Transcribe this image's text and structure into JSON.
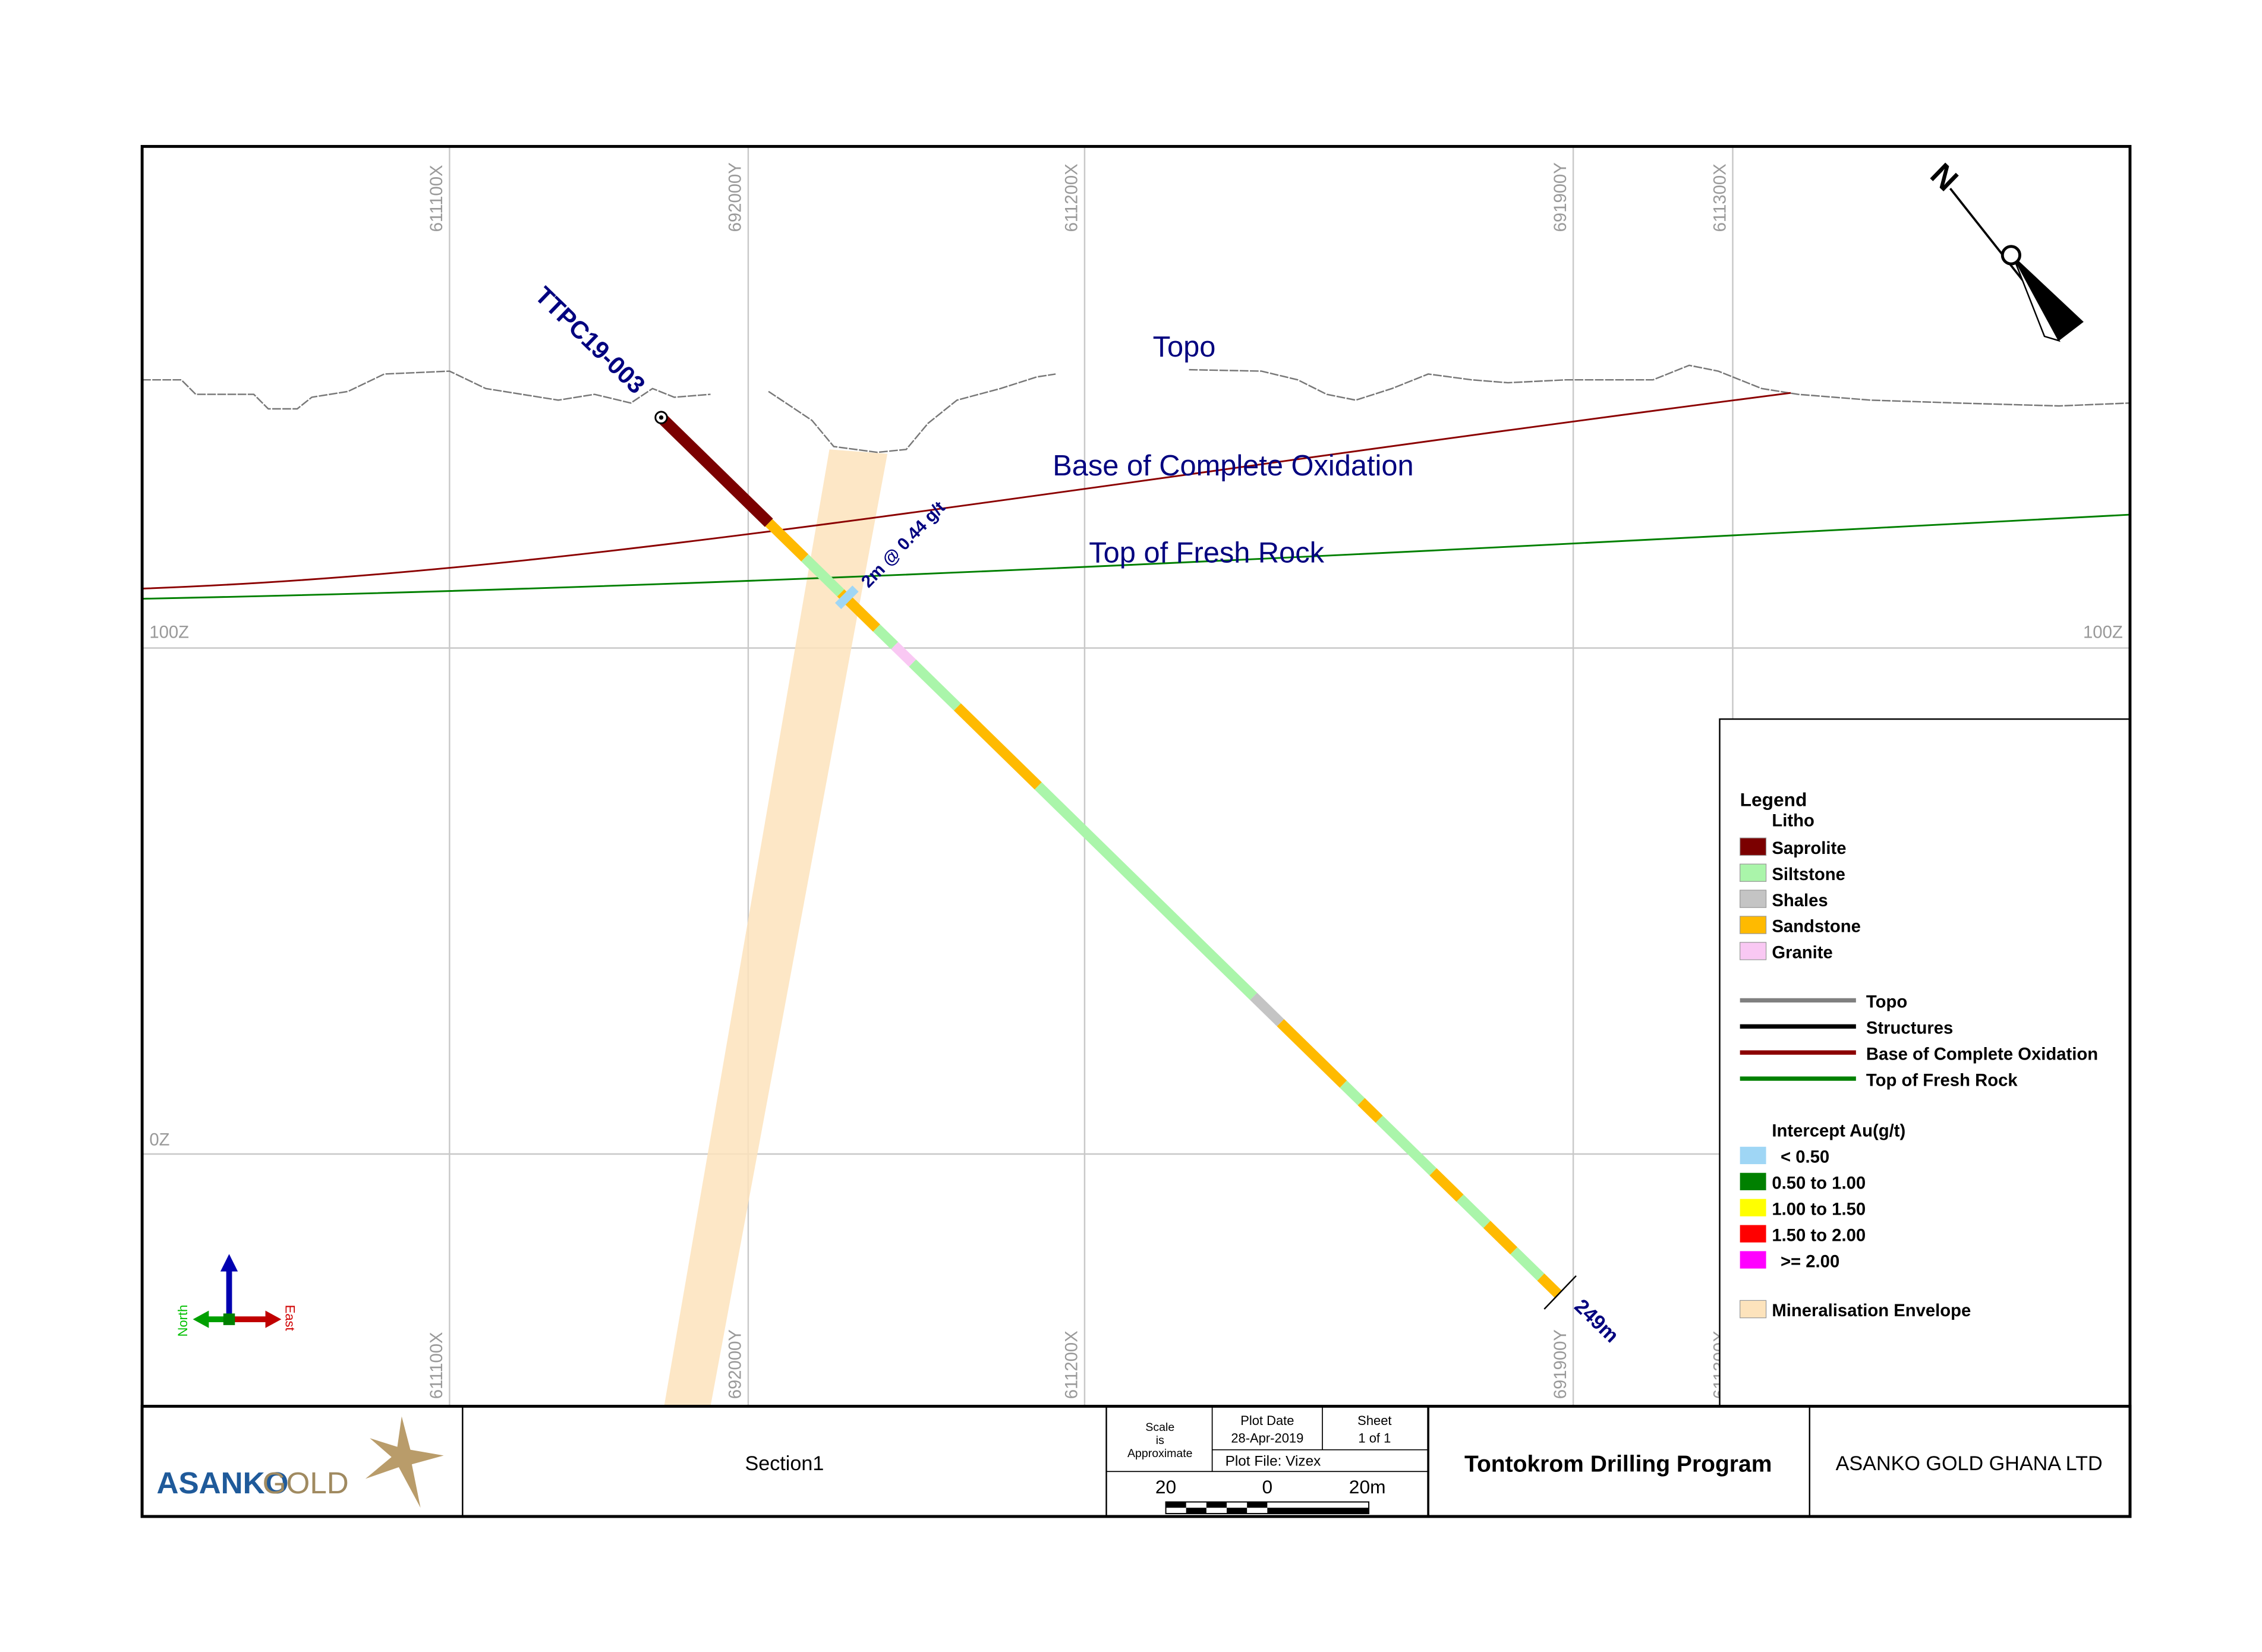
{
  "grid_labels": {
    "x1": "611100X",
    "y1": "692000Y",
    "x2": "611200X",
    "y2": "691900Y",
    "x3": "611300X",
    "z100": "100Z",
    "z0": "0Z"
  },
  "map": {
    "topo": "Topo",
    "bco": "Base of Complete Oxidation",
    "tfr": "Top of Fresh Rock",
    "hole": "TTPC19-003",
    "intercept": "2m @ 0.44 g/t",
    "depth": "249m",
    "north": "North",
    "east": "East"
  },
  "legend": {
    "title": "Legend",
    "litho_title": "Litho",
    "litho": [
      {
        "name": "Saprolite",
        "color": "#7b0000"
      },
      {
        "name": "Siltstone",
        "color": "#aaf5aa"
      },
      {
        "name": "Shales",
        "color": "#c4c4c4"
      },
      {
        "name": "Sandstone",
        "color": "#ffba00"
      },
      {
        "name": "Granite",
        "color": "#f9c8f3"
      }
    ],
    "lines": [
      {
        "name": "Topo",
        "color": "#808080"
      },
      {
        "name": "Structures",
        "color": "#000000"
      },
      {
        "name": "Base of Complete Oxidation",
        "color": "#8b0000"
      },
      {
        "name": "Top of Fresh Rock",
        "color": "#008000"
      }
    ],
    "intercept_title": "Intercept Au(g/t)",
    "intercepts": [
      {
        "name": "< 0.50",
        "color": "#9fd6f5"
      },
      {
        "name": "0.50 to 1.00",
        "color": "#008000"
      },
      {
        "name": "1.00 to 1.50",
        "color": "#ffff00"
      },
      {
        "name": "1.50 to 2.00",
        "color": "#ff0000"
      },
      {
        "name": ">= 2.00",
        "color": "#ff00ff"
      }
    ],
    "envelope": {
      "name": "Mineralisation Envelope",
      "color": "#fde3bc"
    }
  },
  "title_block": {
    "company_logo_1": "ASANKO",
    "company_logo_2": "GOLD",
    "section": "Section1",
    "scale_1": "Scale",
    "scale_2": "is",
    "scale_3": "Approximate",
    "plot_date_label": "Plot Date",
    "plot_date": "28-Apr-2019",
    "sheet_label": "Sheet",
    "sheet": "1 of 1",
    "plot_file": "Plot File: Vizex",
    "scale_left": "20",
    "scale_mid": "0",
    "scale_right": "20m",
    "project": "Tontokrom Drilling Program",
    "company": "ASANKO GOLD GHANA LTD"
  }
}
